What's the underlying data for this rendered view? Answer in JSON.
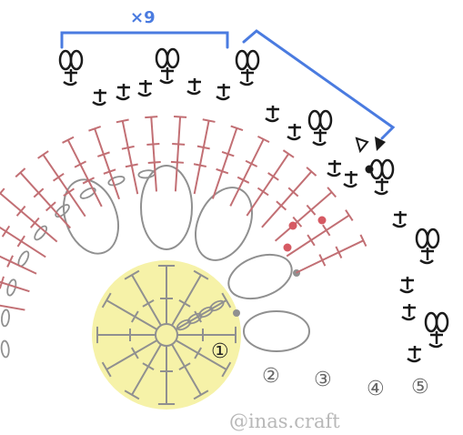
{
  "diagram": {
    "repeat_label": "×9",
    "round_labels": [
      "①",
      "②",
      "③",
      "④",
      "⑤"
    ],
    "watermark": "@inas.craft",
    "colors": {
      "repeat_bracket": "#4a7be0",
      "center_fill": "#f6f2a8",
      "round_gray": "#909090",
      "round_pink": "#c26f74",
      "round_black": "#1a1a1a",
      "marker_dot": "#d65a63",
      "watermark": "#b8b8b8"
    },
    "legend_icons": [
      "chain-oval",
      "slip-stitch-dot",
      "single-crochet-cross",
      "double-crochet-t",
      "picot-loop",
      "cut-yarn-triangle",
      "join-yarn-triangle"
    ]
  }
}
